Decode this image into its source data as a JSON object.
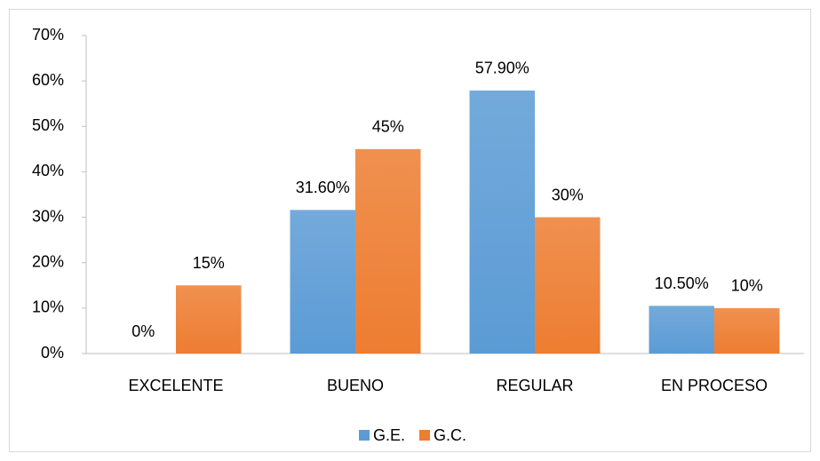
{
  "chart_data": {
    "type": "bar",
    "categories": [
      "EXCELENTE",
      "BUENO",
      "REGULAR",
      "EN PROCESO"
    ],
    "series": [
      {
        "name": "G.E.",
        "color": "#5b9bd5",
        "values": [
          0,
          31.6,
          57.9,
          10.5
        ],
        "value_labels": [
          "0%",
          "31.60%",
          "57.90%",
          "10.50%"
        ]
      },
      {
        "name": "G.C.",
        "color": "#ed7d31",
        "values": [
          15,
          45,
          30,
          10
        ],
        "value_labels": [
          "15%",
          "45%",
          "30%",
          "10%"
        ]
      }
    ],
    "ylim": [
      0,
      70
    ],
    "yticks": [
      {
        "value": 0,
        "label": "0%"
      },
      {
        "value": 10,
        "label": "10%"
      },
      {
        "value": 20,
        "label": "20%"
      },
      {
        "value": 30,
        "label": "30%"
      },
      {
        "value": 40,
        "label": "40%"
      },
      {
        "value": 50,
        "label": "50%"
      },
      {
        "value": 60,
        "label": "60%"
      },
      {
        "value": 70,
        "label": "70%"
      }
    ],
    "grid": false,
    "legend": "bottom"
  }
}
